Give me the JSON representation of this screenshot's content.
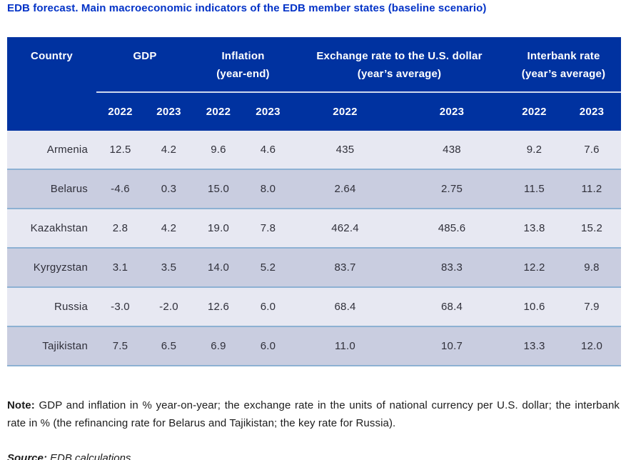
{
  "title": "EDB forecast. Main macroeconomic indicators of the EDB member states (baseline scenario)",
  "colors": {
    "title_blue": "#0333c7",
    "header_bg": "#0032a0",
    "row_light": "#e7e8f2",
    "row_dark": "#c9cde0",
    "row_border": "#8db1d3"
  },
  "table": {
    "country_header": "Country",
    "groups": [
      {
        "line1": "GDP",
        "line2": ""
      },
      {
        "line1": "Inflation",
        "line2": "(year-end)"
      },
      {
        "line1": "Exchange rate to the U.S. dollar",
        "line2": "(year’s average)"
      },
      {
        "line1": "Interbank rate",
        "line2": "(year’s average)"
      }
    ],
    "years": [
      "2022",
      "2023",
      "2022",
      "2023",
      "2022",
      "2023",
      "2022",
      "2023"
    ],
    "rows": [
      {
        "country": "Armenia",
        "values": [
          "12.5",
          "4.2",
          "9.6",
          "4.6",
          "435",
          "438",
          "9.2",
          "7.6"
        ]
      },
      {
        "country": "Belarus",
        "values": [
          "-4.6",
          "0.3",
          "15.0",
          "8.0",
          "2.64",
          "2.75",
          "11.5",
          "11.2"
        ]
      },
      {
        "country": "Kazakhstan",
        "values": [
          "2.8",
          "4.2",
          "19.0",
          "7.8",
          "462.4",
          "485.6",
          "13.8",
          "15.2"
        ]
      },
      {
        "country": "Kyrgyzstan",
        "values": [
          "3.1",
          "3.5",
          "14.0",
          "5.2",
          "83.7",
          "83.3",
          "12.2",
          "9.8"
        ]
      },
      {
        "country": "Russia",
        "values": [
          "-3.0",
          "-2.0",
          "12.6",
          "6.0",
          "68.4",
          "68.4",
          "10.6",
          "7.9"
        ]
      },
      {
        "country": "Tajikistan",
        "values": [
          "7.5",
          "6.5",
          "6.9",
          "6.0",
          "11.0",
          "10.7",
          "13.3",
          "12.0"
        ]
      }
    ]
  },
  "note": {
    "label": "Note:",
    "text": " GDP and inflation in % year-on-year; the exchange rate in the units of national currency per U.S. dollar; the interbank rate in % (the refinancing rate for Belarus and Tajikistan; the key rate for Russia)."
  },
  "source": {
    "label": "Source:",
    "text": " EDB calculations"
  }
}
